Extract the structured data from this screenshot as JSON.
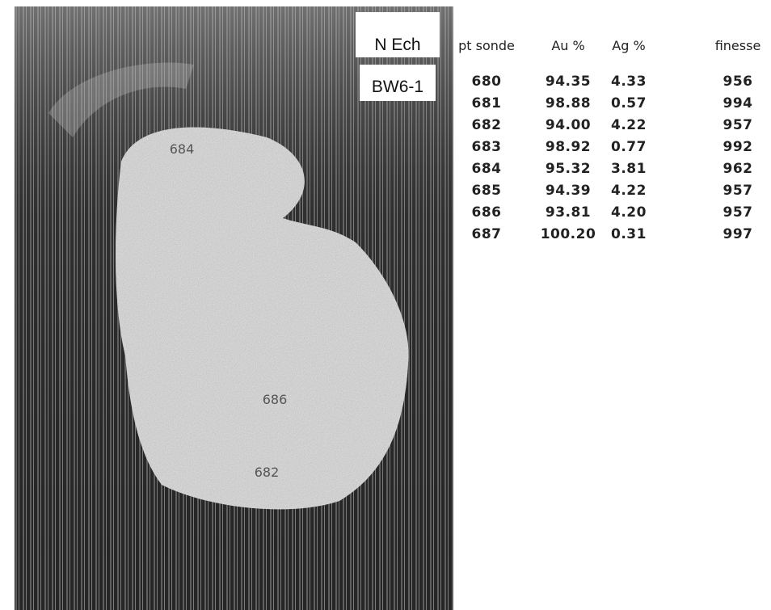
{
  "image": {
    "sample_header": "N Ech",
    "sample_id": "BW6-1",
    "point_labels": [
      "684",
      "686",
      "682"
    ]
  },
  "table": {
    "headers": [
      "pt sonde",
      "Au %",
      "Ag %",
      "finesse"
    ],
    "rows": [
      [
        "680",
        "94.35",
        "4.33",
        "956"
      ],
      [
        "681",
        "98.88",
        "0.57",
        "994"
      ],
      [
        "682",
        "94.00",
        "4.22",
        "957"
      ],
      [
        "683",
        "98.92",
        "0.77",
        "992"
      ],
      [
        "684",
        "95.32",
        "3.81",
        "962"
      ],
      [
        "685",
        "94.39",
        "4.22",
        "957"
      ],
      [
        "686",
        "93.81",
        "4.20",
        "957"
      ],
      [
        "687",
        "100.20",
        "0.31",
        "997"
      ]
    ]
  }
}
